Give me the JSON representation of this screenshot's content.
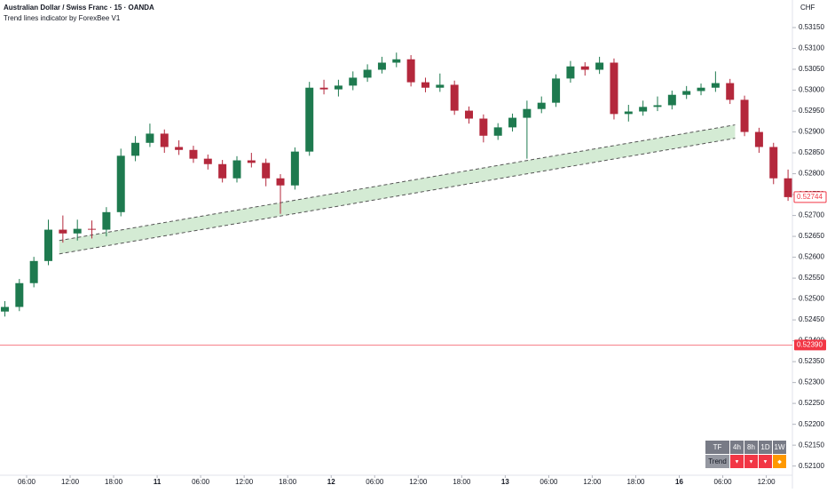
{
  "chart_data": {
    "type": "candlestick",
    "title": "Australian Dollar / Swiss Franc · 15 · OANDA",
    "subtitle": "Trend lines indicator by ForexBee V1",
    "y_axis_label": "CHF",
    "up_color": "#1e7a4f",
    "down_color": "#b4283c",
    "xlim": [
      2.33,
      111.6
    ],
    "xticks": [
      {
        "value": 6,
        "label": "06:00"
      },
      {
        "value": 12,
        "label": "12:00"
      },
      {
        "value": 18,
        "label": "18:00"
      },
      {
        "value": 24,
        "label": "11"
      },
      {
        "value": 30,
        "label": "06:00"
      },
      {
        "value": 36,
        "label": "12:00"
      },
      {
        "value": 42,
        "label": "18:00"
      },
      {
        "value": 48,
        "label": "12"
      },
      {
        "value": 54,
        "label": "06:00"
      },
      {
        "value": 60,
        "label": "12:00"
      },
      {
        "value": 66,
        "label": "18:00"
      },
      {
        "value": 72,
        "label": "13"
      },
      {
        "value": 78,
        "label": "06:00"
      },
      {
        "value": 84,
        "label": "12:00"
      },
      {
        "value": 90,
        "label": "18:00"
      },
      {
        "value": 96,
        "label": "16"
      },
      {
        "value": 102,
        "label": "06:00"
      },
      {
        "value": 108,
        "label": "12:00"
      }
    ],
    "ylim": [
      0.52078,
      0.53216
    ],
    "yticks": [
      {
        "value": 0.5315,
        "label": "0.53150"
      },
      {
        "value": 0.531,
        "label": "0.53100"
      },
      {
        "value": 0.5305,
        "label": "0.53050"
      },
      {
        "value": 0.53,
        "label": "0.53000"
      },
      {
        "value": 0.5295,
        "label": "0.52950"
      },
      {
        "value": 0.529,
        "label": "0.52900"
      },
      {
        "value": 0.5285,
        "label": "0.52850"
      },
      {
        "value": 0.528,
        "label": "0.52800"
      },
      {
        "value": 0.5275,
        "label": "0.52750"
      },
      {
        "value": 0.527,
        "label": "0.52700"
      },
      {
        "value": 0.5265,
        "label": "0.52650"
      },
      {
        "value": 0.526,
        "label": "0.52600"
      },
      {
        "value": 0.5255,
        "label": "0.52550"
      },
      {
        "value": 0.525,
        "label": "0.52500"
      },
      {
        "value": 0.5245,
        "label": "0.52450"
      },
      {
        "value": 0.524,
        "label": "0.52400"
      },
      {
        "value": 0.5235,
        "label": "0.52350"
      },
      {
        "value": 0.523,
        "label": "0.52300"
      },
      {
        "value": 0.5225,
        "label": "0.52250"
      },
      {
        "value": 0.522,
        "label": "0.52200"
      },
      {
        "value": 0.5215,
        "label": "0.52150"
      },
      {
        "value": 0.521,
        "label": "0.52100"
      }
    ],
    "x": [
      3,
      5,
      7,
      9,
      11,
      13,
      15,
      17,
      19,
      21,
      23,
      25,
      27,
      29,
      31,
      33,
      35,
      37,
      39,
      41,
      43,
      45,
      47,
      49,
      51,
      53,
      55,
      57,
      59,
      61,
      63,
      65,
      67,
      69,
      71,
      73,
      75,
      77,
      79,
      81,
      83,
      85,
      87,
      89,
      91,
      93,
      95,
      97,
      99,
      101,
      103,
      105,
      107,
      109,
      111
    ],
    "open": [
      0.5247,
      0.52481,
      0.52538,
      0.52591,
      0.52666,
      0.52657,
      0.52668,
      0.52666,
      0.52708,
      0.52843,
      0.52874,
      0.52896,
      0.52864,
      0.52857,
      0.52836,
      0.52823,
      0.52789,
      0.52832,
      0.52826,
      0.52789,
      0.52772,
      0.52853,
      0.53006,
      0.53002,
      0.53011,
      0.5303,
      0.53049,
      0.53066,
      0.53074,
      0.53019,
      0.53006,
      0.53013,
      0.52951,
      0.52932,
      0.52891,
      0.52911,
      0.52934,
      0.52955,
      0.5297,
      0.53028,
      0.53057,
      0.53049,
      0.53066,
      0.52943,
      0.52949,
      0.5296,
      0.52964,
      0.52989,
      0.52998,
      0.53006,
      0.53017,
      0.52977,
      0.529,
      0.52864,
      0.52789
    ],
    "high": [
      0.52495,
      0.52548,
      0.52601,
      0.5269,
      0.527,
      0.5269,
      0.52688,
      0.5272,
      0.5286,
      0.5289,
      0.5292,
      0.52906,
      0.5288,
      0.52867,
      0.52846,
      0.52833,
      0.52842,
      0.5285,
      0.52836,
      0.52799,
      0.52863,
      0.5302,
      0.53025,
      0.53025,
      0.53045,
      0.53062,
      0.5308,
      0.5309,
      0.53084,
      0.5303,
      0.5304,
      0.53023,
      0.52961,
      0.52942,
      0.52921,
      0.52944,
      0.52975,
      0.52985,
      0.53038,
      0.5307,
      0.53067,
      0.5308,
      0.53076,
      0.52965,
      0.52975,
      0.52985,
      0.52999,
      0.5301,
      0.53016,
      0.53045,
      0.53027,
      0.52987,
      0.5291,
      0.52874,
      0.5281
    ],
    "low": [
      0.52458,
      0.52471,
      0.52528,
      0.52581,
      0.52635,
      0.5264,
      0.52645,
      0.5265,
      0.52698,
      0.5283,
      0.52864,
      0.5285,
      0.52845,
      0.52826,
      0.5281,
      0.52779,
      0.52779,
      0.52815,
      0.5277,
      0.52704,
      0.52762,
      0.52843,
      0.5299,
      0.52985,
      0.53,
      0.5302,
      0.5304,
      0.53055,
      0.53009,
      0.52995,
      0.52996,
      0.52941,
      0.5292,
      0.52875,
      0.52881,
      0.52901,
      0.52836,
      0.52945,
      0.5296,
      0.53018,
      0.53035,
      0.53039,
      0.5293,
      0.52925,
      0.52939,
      0.5295,
      0.52954,
      0.52979,
      0.52988,
      0.52996,
      0.52967,
      0.5289,
      0.5285,
      0.52775,
      0.52735
    ],
    "close": [
      0.52481,
      0.52538,
      0.52591,
      0.52666,
      0.52657,
      0.52668,
      0.52666,
      0.52708,
      0.52843,
      0.52874,
      0.52896,
      0.52864,
      0.52857,
      0.52836,
      0.52823,
      0.52789,
      0.52832,
      0.52826,
      0.52789,
      0.52772,
      0.52853,
      0.53006,
      0.53002,
      0.53011,
      0.5303,
      0.53049,
      0.53066,
      0.53074,
      0.53019,
      0.53006,
      0.53013,
      0.52951,
      0.52932,
      0.52891,
      0.52911,
      0.52934,
      0.52955,
      0.5297,
      0.53028,
      0.53057,
      0.53049,
      0.53066,
      0.52943,
      0.52949,
      0.5296,
      0.52964,
      0.52989,
      0.52998,
      0.53006,
      0.53017,
      0.52977,
      0.529,
      0.52864,
      0.52789,
      0.52744
    ],
    "channel": {
      "x": [
        10.5,
        103.7
      ],
      "upper": [
        0.5264,
        0.52917
      ],
      "lower": [
        0.52608,
        0.52885
      ],
      "fill": "#d4ebd4",
      "color": "#555555"
    },
    "last_price": 0.52744,
    "last_price_color": "#f23645",
    "alert_line": {
      "value": 0.5239,
      "label": "0.52390",
      "color": "#f23645"
    }
  },
  "trend_table": {
    "header": [
      "TF",
      "4h",
      "8h",
      "1D",
      "1W"
    ],
    "row": [
      "Trend",
      "▼",
      "▼",
      "▼",
      "◆"
    ],
    "colors": [
      "#f23645",
      "#f23645",
      "#f23645",
      "#ff9800"
    ]
  }
}
